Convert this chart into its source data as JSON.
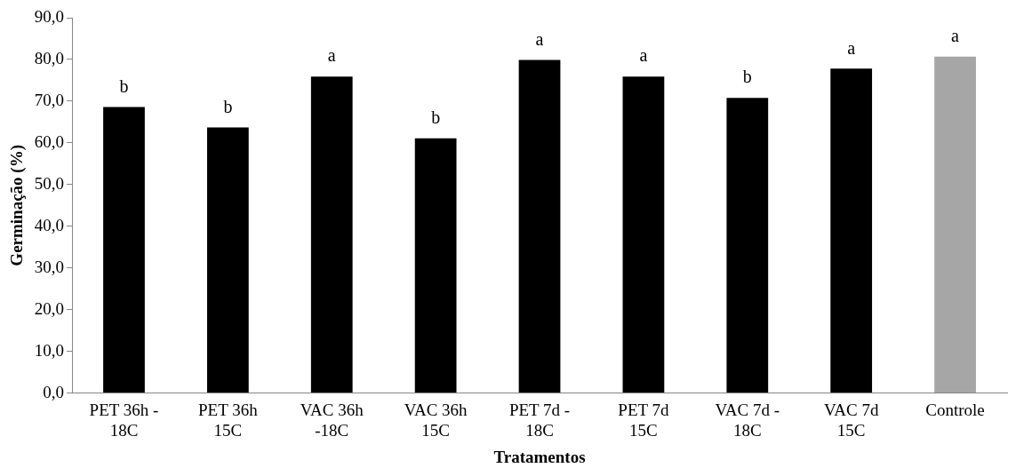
{
  "chart_data": {
    "type": "bar",
    "xlabel": "Tratamentos",
    "ylabel": "Germinação (%)",
    "categories": [
      "PET 36h - 18C",
      "PET 36h 15C",
      "VAC 36h -18C",
      "VAC 36h 15C",
      "PET 7d - 18C",
      "PET 7d 15C",
      "VAC 7d - 18C",
      "VAC 7d 15C",
      "Controle"
    ],
    "values": [
      68.6,
      63.7,
      75.9,
      61.1,
      79.9,
      75.9,
      70.8,
      77.8,
      80.7
    ],
    "colors": [
      "#000000",
      "#000000",
      "#000000",
      "#000000",
      "#000000",
      "#000000",
      "#000000",
      "#000000",
      "#a6a6a6"
    ],
    "ylim": [
      0,
      90
    ],
    "yticks": [
      {
        "value": 0,
        "label": "0,0"
      },
      {
        "value": 10,
        "label": "10,0"
      },
      {
        "value": 20,
        "label": "20,0"
      },
      {
        "value": 30,
        "label": "30,0"
      },
      {
        "value": 40,
        "label": "40,0"
      },
      {
        "value": 50,
        "label": "50,0"
      },
      {
        "value": 60,
        "label": "60,0"
      },
      {
        "value": 70,
        "label": "70,0"
      },
      {
        "value": 80,
        "label": "80,0"
      },
      {
        "value": 90,
        "label": "90,0"
      }
    ],
    "annotations": [
      {
        "text": "b",
        "x": "PET 36h - 18C",
        "y": 68.6
      },
      {
        "text": "b",
        "x": "PET 36h 15C",
        "y": 63.7
      },
      {
        "text": "a",
        "x": "VAC 36h -18C",
        "y": 75.9
      },
      {
        "text": "b",
        "x": "VAC 36h 15C",
        "y": 61.1
      },
      {
        "text": "a",
        "x": "PET 7d - 18C",
        "y": 79.9
      },
      {
        "text": "a",
        "x": "PET 7d 15C",
        "y": 75.9
      },
      {
        "text": "b",
        "x": "VAC 7d - 18C",
        "y": 70.8
      },
      {
        "text": "a",
        "x": "VAC 7d 15C",
        "y": 77.8
      },
      {
        "text": "a",
        "x": "Controle",
        "y": 80.7
      }
    ],
    "grid": false,
    "legend": false
  }
}
